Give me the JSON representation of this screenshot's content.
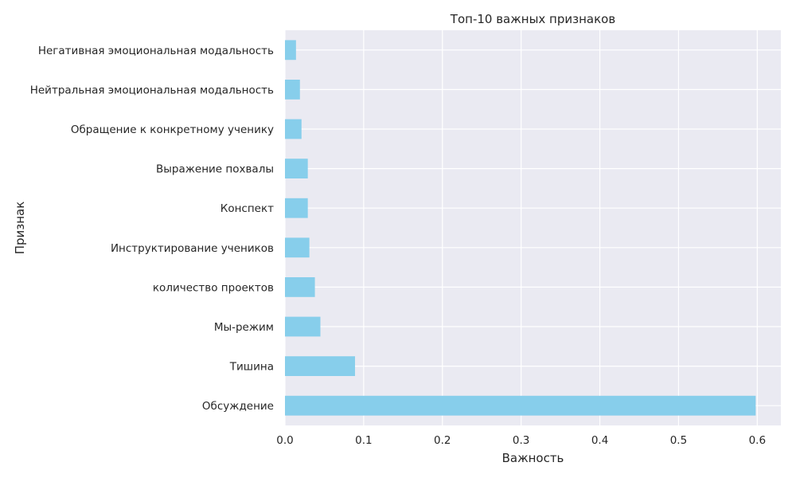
{
  "chart_data": {
    "type": "bar",
    "orientation": "horizontal",
    "title": "Топ-10 важных признаков",
    "xlabel": "Важность",
    "ylabel": "Признак",
    "categories": [
      "Обсуждение",
      "Тишина",
      "Мы-режим",
      "количество проектов",
      "Инструктирование учеников",
      "Конспект",
      "Выражение похвалы",
      "Обращение к конкретному ученику",
      "Нейтральная эмоциональная модальность",
      "Негативная эмоциональная модальность"
    ],
    "values": [
      0.598,
      0.089,
      0.045,
      0.038,
      0.031,
      0.029,
      0.029,
      0.021,
      0.019,
      0.014
    ],
    "xlim": [
      0.0,
      0.63
    ],
    "xticks": [
      0.0,
      0.1,
      0.2,
      0.3,
      0.4,
      0.5,
      0.6
    ],
    "xtick_labels": [
      "0.0",
      "0.1",
      "0.2",
      "0.3",
      "0.4",
      "0.5",
      "0.6"
    ],
    "grid": true,
    "bar_color": "#87CEEB",
    "background_color": "#EAEAF2",
    "grid_color": "#FFFFFF"
  }
}
